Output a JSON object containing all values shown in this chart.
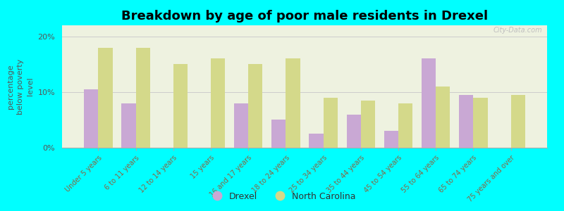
{
  "title": "Breakdown by age of poor male residents in Drexel",
  "ylabel": "percentage\nbelow poverty\nlevel",
  "categories": [
    "Under 5 years",
    "6 to 11 years",
    "12 to 14 years",
    "15 years",
    "16 and 17 years",
    "18 to 24 years",
    "25 to 34 years",
    "35 to 44 years",
    "45 to 54 years",
    "55 to 64 years",
    "65 to 74 years",
    "75 years and over"
  ],
  "drexel_values": [
    10.5,
    8.0,
    0.0,
    0.0,
    8.0,
    5.0,
    2.5,
    6.0,
    3.0,
    16.0,
    9.5,
    0.0
  ],
  "nc_values": [
    18.0,
    18.0,
    15.0,
    16.0,
    15.0,
    16.0,
    9.0,
    8.5,
    8.0,
    11.0,
    9.0,
    9.5
  ],
  "drexel_color": "#c9a8d4",
  "nc_color": "#d4d98a",
  "background_color": "#00ffff",
  "plot_bg_color": "#eef2e0",
  "title_fontsize": 13,
  "ylabel_fontsize": 8,
  "tick_fontsize": 7,
  "ylim": [
    0,
    22
  ],
  "ytick_labels": [
    "0%",
    "10%",
    "20%"
  ],
  "watermark": "City-Data.com",
  "legend_labels": [
    "Drexel",
    "North Carolina"
  ]
}
